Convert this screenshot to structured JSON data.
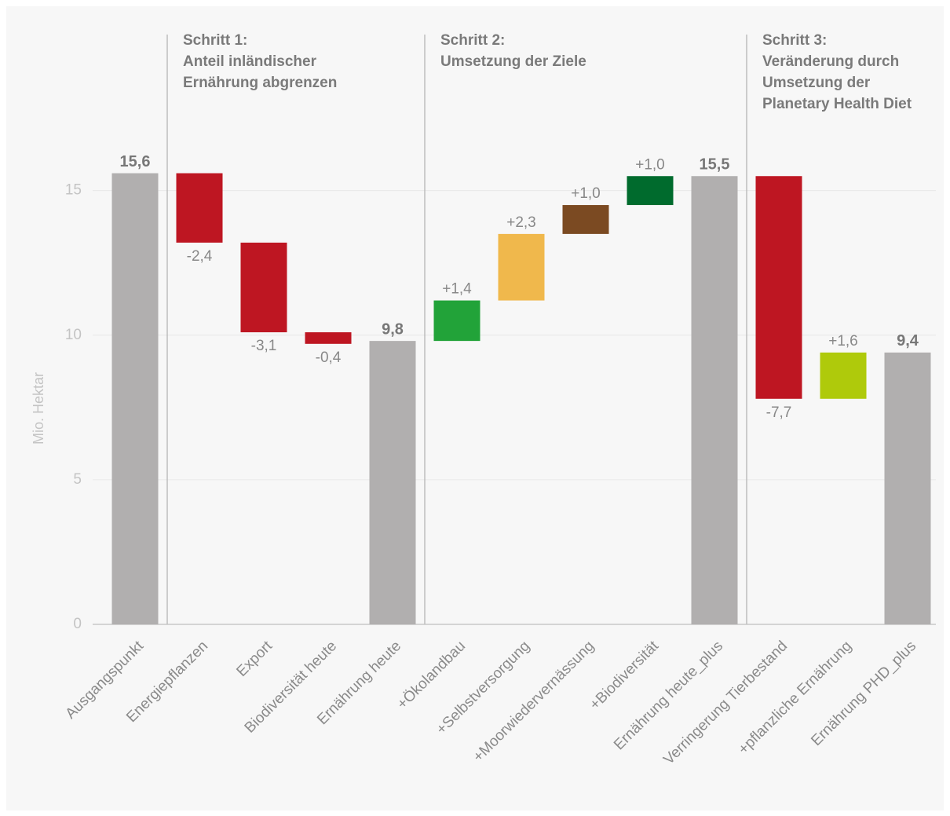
{
  "chart_data": {
    "type": "waterfall",
    "y_label": "Mio. Hektar",
    "steps": [
      {
        "lines": [
          "Schritt 1:",
          "Anteil inländischer",
          "Ernährung abgrenzen"
        ]
      },
      {
        "lines": [
          "Schritt 2:",
          "Umsetzung der Ziele"
        ]
      },
      {
        "lines": [
          "Schritt 3:",
          "Veränderung durch",
          "Umsetzung der",
          "Planetary Health Diet"
        ]
      }
    ],
    "categories": [
      "Ausgangspunkt",
      "Energiepflanzen",
      "Export",
      "Biodiversität heute",
      "Ernährung heute",
      "+Ökolandbau",
      "+Selbstversorgung",
      "+Moorwiedervernässung",
      "+Biodiversität",
      "Ernährung heute_plus",
      "Verringerung Tierbestand",
      "+pflanzliche Ernährung",
      "Ernährung PHD_plus"
    ],
    "measure": [
      "total",
      "relative",
      "relative",
      "relative",
      "total",
      "relative",
      "relative",
      "relative",
      "relative",
      "total",
      "relative",
      "relative",
      "total"
    ],
    "values": [
      15.6,
      -2.4,
      -3.1,
      -0.4,
      9.8,
      1.4,
      2.3,
      1.0,
      1.0,
      15.5,
      -7.7,
      1.6,
      9.4
    ],
    "value_labels": [
      "15,6",
      "-2,4",
      "-3,1",
      "-0,4",
      "9,8",
      "+1,4",
      "+2,3",
      "+1,0",
      "+1,0",
      "15,5",
      "-7,7",
      "+1,6",
      "9,4"
    ],
    "colors": [
      "#b1afaf",
      "#be1622",
      "#be1622",
      "#be1622",
      "#b1afaf",
      "#22a339",
      "#f0b84c",
      "#7b4a22",
      "#006b2d",
      "#b1afaf",
      "#be1622",
      "#afca0b",
      "#b1afaf"
    ],
    "ylim": [
      0,
      17
    ],
    "yticks": [
      0,
      5,
      10,
      15
    ],
    "grid": true
  }
}
